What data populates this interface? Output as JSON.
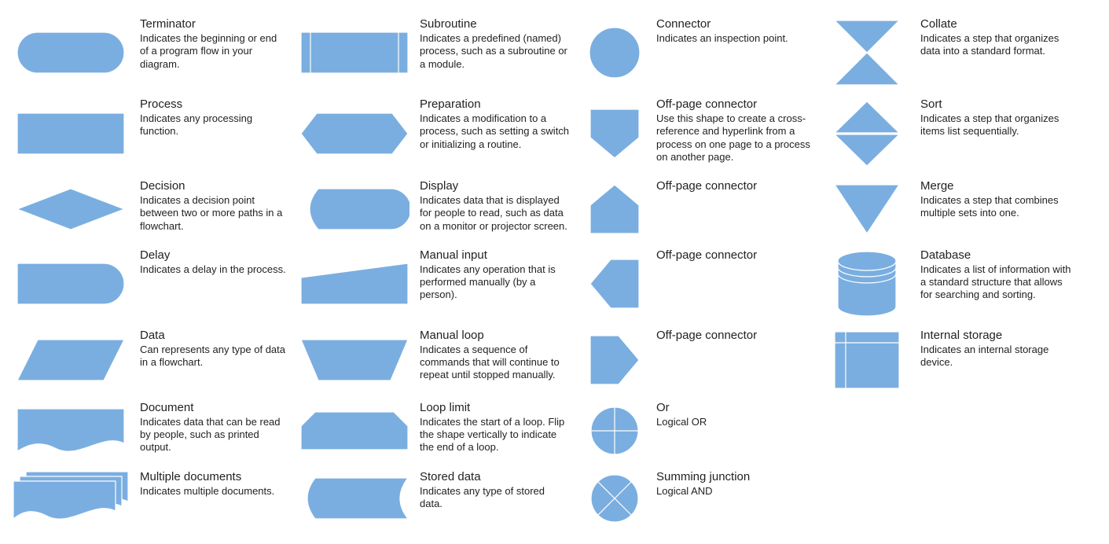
{
  "style": {
    "fill": "#7aaee0",
    "stroke": "#ffffff",
    "stroke_width": 1.2,
    "title_fontsize": 15,
    "desc_fontsize": 13,
    "text_color": "#222222",
    "background": "#ffffff"
  },
  "columns": [
    [
      {
        "shape": "terminator",
        "title": "Terminator",
        "desc": "Indicates the beginning or end of a program flow in your diagram."
      },
      {
        "shape": "process",
        "title": "Process",
        "desc": "Indicates any processing function."
      },
      {
        "shape": "decision",
        "title": "Decision",
        "desc": "Indicates a decision point between two or more paths in a flowchart."
      },
      {
        "shape": "delay",
        "title": "Delay",
        "desc": "Indicates a delay in the process."
      },
      {
        "shape": "data",
        "title": "Data",
        "desc": "Can represents any type of data in a flowchart."
      },
      {
        "shape": "document",
        "title": "Document",
        "desc": "Indicates data that can be read by people, such as printed output."
      },
      {
        "shape": "multi-documents",
        "title": "Multiple documents",
        "desc": "Indicates multiple documents."
      }
    ],
    [
      {
        "shape": "subroutine",
        "title": "Subroutine",
        "desc": "Indicates a predefined (named) process, such as a subroutine or a module."
      },
      {
        "shape": "preparation",
        "title": "Preparation",
        "desc": "Indicates a modification to a process, such as setting a switch or initializing a routine."
      },
      {
        "shape": "display",
        "title": "Display",
        "desc": "Indicates data that is displayed for people to read, such as data on a monitor or projector screen."
      },
      {
        "shape": "manual-input",
        "title": "Manual input",
        "desc": "Indicates any operation that is performed manually (by a person)."
      },
      {
        "shape": "manual-loop",
        "title": "Manual loop",
        "desc": "Indicates a sequence of commands that will continue to repeat until stopped manually."
      },
      {
        "shape": "loop-limit",
        "title": "Loop limit",
        "desc": "Indicates the start of a loop. Flip the shape vertically to indicate the end of a loop."
      },
      {
        "shape": "stored-data",
        "title": "Stored data",
        "desc": "Indicates any type of stored data."
      }
    ],
    [
      {
        "shape": "connector",
        "title": "Connector",
        "desc": "Indicates an inspection point."
      },
      {
        "shape": "offpage-down",
        "title": "Off-page connector",
        "desc": "Use this shape to create a cross-reference and hyperlink from a process on one page to a process on another page."
      },
      {
        "shape": "offpage-up",
        "title": "Off-page connector",
        "desc": ""
      },
      {
        "shape": "offpage-left",
        "title": "Off-page connector",
        "desc": ""
      },
      {
        "shape": "offpage-right",
        "title": "Off-page connector",
        "desc": ""
      },
      {
        "shape": "or",
        "title": "Or",
        "desc": "Logical OR"
      },
      {
        "shape": "summing-junction",
        "title": "Summing junction",
        "desc": "Logical AND"
      }
    ],
    [
      {
        "shape": "collate",
        "title": "Collate",
        "desc": "Indicates a step that organizes data into a standard format."
      },
      {
        "shape": "sort",
        "title": "Sort",
        "desc": "Indicates a step that organizes items list sequentially."
      },
      {
        "shape": "merge",
        "title": "Merge",
        "desc": "Indicates a step that combines multiple sets into one."
      },
      {
        "shape": "database",
        "title": "Database",
        "desc": "Indicates a list of information with a standard structure that allows for searching and sorting."
      },
      {
        "shape": "internal-storage",
        "title": "Internal storage",
        "desc": "Indicates an internal storage device."
      }
    ]
  ]
}
